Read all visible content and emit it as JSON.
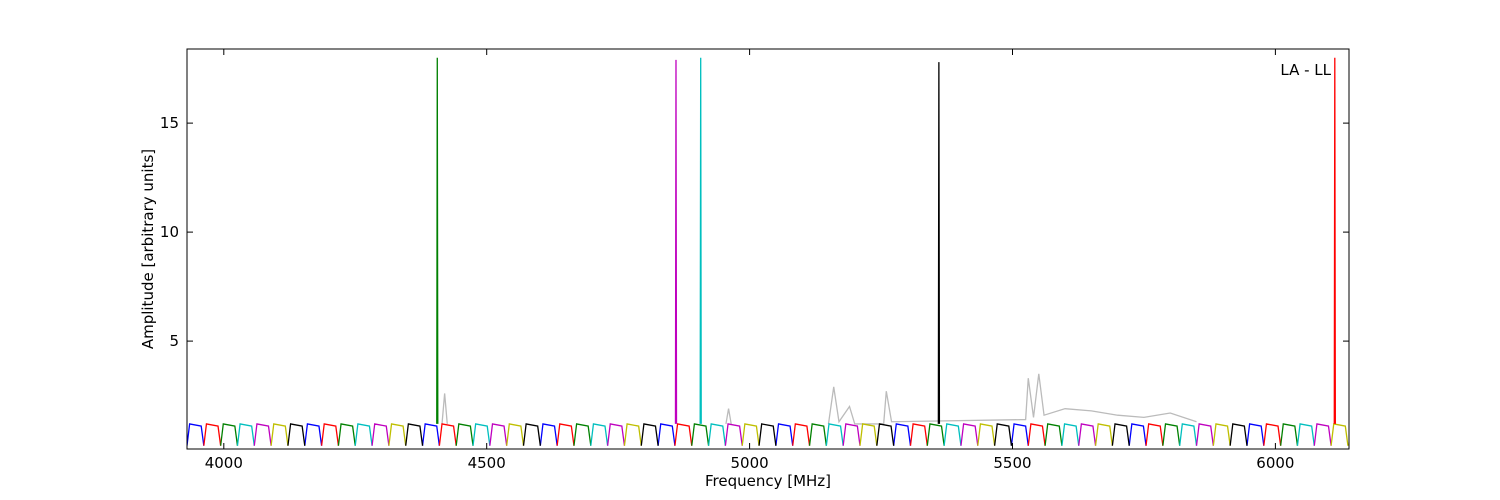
{
  "chart_data": {
    "type": "line",
    "xlabel": "Frequency [MHz]",
    "ylabel": "Amplitude [arbitrary units]",
    "annotation": "LA - LL",
    "xlim": [
      3930,
      6140
    ],
    "ylim": [
      0.05,
      18.4
    ],
    "xticks": [
      4000,
      4500,
      5000,
      5500,
      6000
    ],
    "yticks": [
      5,
      10,
      15
    ],
    "series": [
      {
        "color": "#bbbbbb",
        "x": [
          4415,
          4420,
          4425,
          null,
          4955,
          4960,
          4965,
          null,
          5150,
          5160,
          5170,
          5190,
          5200,
          5255,
          5260,
          5270,
          5525,
          5530,
          5540,
          5550,
          5560,
          5600,
          5650,
          5700,
          5750,
          5800,
          5850
        ],
        "values": [
          1.2,
          2.6,
          1.2,
          null,
          1.2,
          1.9,
          1.2,
          null,
          1.2,
          2.9,
          1.3,
          2.0,
          1.2,
          1.2,
          2.7,
          1.3,
          1.4,
          3.3,
          1.5,
          3.5,
          1.6,
          1.9,
          1.8,
          1.6,
          1.5,
          1.7,
          1.3
        ]
      },
      {
        "color": "#0000ff",
        "x": [
          3930,
          3935,
          3957,
          3962,
          null,
          4154,
          4159,
          4181,
          4186,
          null,
          4378,
          4383,
          4405,
          4410,
          null,
          4602,
          4607,
          4629,
          4634,
          null,
          4826,
          4831,
          4853,
          4858,
          null,
          5050,
          5055,
          5077,
          5082,
          null,
          5274,
          5279,
          5301,
          5306,
          null,
          5498,
          5503,
          5525,
          5530,
          null,
          5722,
          5727,
          5749,
          5754,
          null,
          5946,
          5951,
          5973,
          5978
        ],
        "values": [
          0.2,
          1.2,
          1.1,
          0.2,
          null,
          0.2,
          1.2,
          1.1,
          0.2,
          null,
          0.2,
          1.2,
          1.1,
          0.2,
          null,
          0.2,
          1.2,
          1.1,
          0.2,
          null,
          0.2,
          1.2,
          1.1,
          0.2,
          null,
          0.2,
          1.2,
          1.1,
          0.2,
          null,
          0.2,
          1.2,
          1.1,
          0.2,
          null,
          0.2,
          1.2,
          1.1,
          0.2,
          null,
          0.2,
          1.2,
          1.1,
          0.2,
          null,
          0.2,
          1.2,
          1.1,
          0.2
        ]
      },
      {
        "color": "#ff0000",
        "x": [
          3962,
          3967,
          3989,
          3994,
          null,
          4186,
          4191,
          4213,
          4218,
          null,
          4410,
          4415,
          4437,
          4442,
          null,
          4634,
          4639,
          4661,
          4666,
          null,
          4858,
          4863,
          4885,
          4890,
          null,
          5082,
          5087,
          5109,
          5114,
          null,
          5306,
          5311,
          5333,
          5338,
          null,
          5530,
          5535,
          5557,
          5562,
          null,
          5754,
          5759,
          5781,
          5786,
          null,
          5978,
          5983,
          6005,
          6010
        ],
        "values": [
          0.2,
          1.2,
          1.1,
          0.2,
          null,
          0.2,
          1.2,
          1.1,
          0.2,
          null,
          0.2,
          1.2,
          1.1,
          0.2,
          null,
          0.2,
          1.2,
          1.1,
          0.2,
          null,
          0.2,
          1.2,
          1.1,
          0.2,
          null,
          0.2,
          1.2,
          1.1,
          0.2,
          null,
          0.2,
          1.2,
          1.1,
          0.2,
          null,
          0.2,
          1.2,
          1.1,
          0.2,
          null,
          0.2,
          1.2,
          1.1,
          0.2,
          null,
          0.2,
          1.2,
          1.1,
          0.2
        ]
      },
      {
        "color": "#008000",
        "x": [
          3994,
          3999,
          4021,
          4026,
          null,
          4218,
          4223,
          4245,
          4250,
          null,
          4442,
          4447,
          4469,
          4474,
          null,
          4666,
          4671,
          4693,
          4698,
          null,
          4890,
          4895,
          4917,
          4922,
          null,
          5114,
          5119,
          5141,
          5146,
          null,
          5338,
          5343,
          5365,
          5370,
          null,
          5562,
          5567,
          5589,
          5594,
          null,
          5786,
          5791,
          5813,
          5818,
          null,
          6010,
          6015,
          6037,
          6042
        ],
        "values": [
          0.2,
          1.2,
          1.1,
          0.2,
          null,
          0.2,
          1.2,
          1.1,
          0.2,
          null,
          0.2,
          1.2,
          1.1,
          0.2,
          null,
          0.2,
          1.2,
          1.1,
          0.2,
          null,
          0.2,
          1.2,
          1.1,
          0.2,
          null,
          0.2,
          1.2,
          1.1,
          0.2,
          null,
          0.2,
          1.2,
          1.1,
          0.2,
          null,
          0.2,
          1.2,
          1.1,
          0.2,
          null,
          0.2,
          1.2,
          1.1,
          0.2,
          null,
          0.2,
          1.2,
          1.1,
          0.2
        ]
      },
      {
        "color": "#00bfbf",
        "x": [
          4026,
          4031,
          4053,
          4058,
          null,
          4250,
          4255,
          4277,
          4282,
          null,
          4474,
          4479,
          4501,
          4506,
          null,
          4698,
          4703,
          4725,
          4730,
          null,
          4922,
          4927,
          4949,
          4954,
          null,
          5146,
          5151,
          5173,
          5178,
          null,
          5370,
          5375,
          5397,
          5402,
          null,
          5594,
          5599,
          5621,
          5626,
          null,
          5818,
          5823,
          5845,
          5850,
          null,
          6042,
          6047,
          6069,
          6074
        ],
        "values": [
          0.2,
          1.2,
          1.1,
          0.2,
          null,
          0.2,
          1.2,
          1.1,
          0.2,
          null,
          0.2,
          1.2,
          1.1,
          0.2,
          null,
          0.2,
          1.2,
          1.1,
          0.2,
          null,
          0.2,
          1.2,
          1.1,
          0.2,
          null,
          0.2,
          1.2,
          1.1,
          0.2,
          null,
          0.2,
          1.2,
          1.1,
          0.2,
          null,
          0.2,
          1.2,
          1.1,
          0.2,
          null,
          0.2,
          1.2,
          1.1,
          0.2,
          null,
          0.2,
          1.2,
          1.1,
          0.2
        ]
      },
      {
        "color": "#bf00bf",
        "x": [
          4058,
          4063,
          4085,
          4090,
          null,
          4282,
          4287,
          4309,
          4314,
          null,
          4506,
          4511,
          4533,
          4538,
          null,
          4730,
          4735,
          4757,
          4762,
          null,
          4954,
          4959,
          4981,
          4986,
          null,
          5178,
          5183,
          5205,
          5210,
          null,
          5402,
          5407,
          5429,
          5434,
          null,
          5626,
          5631,
          5653,
          5658,
          null,
          5850,
          5855,
          5877,
          5882,
          null,
          6074,
          6079,
          6101,
          6106
        ],
        "values": [
          0.2,
          1.2,
          1.1,
          0.2,
          null,
          0.2,
          1.2,
          1.1,
          0.2,
          null,
          0.2,
          1.2,
          1.1,
          0.2,
          null,
          0.2,
          1.2,
          1.1,
          0.2,
          null,
          0.2,
          1.2,
          1.1,
          0.2,
          null,
          0.2,
          1.2,
          1.1,
          0.2,
          null,
          0.2,
          1.2,
          1.1,
          0.2,
          null,
          0.2,
          1.2,
          1.1,
          0.2,
          null,
          0.2,
          1.2,
          1.1,
          0.2,
          null,
          0.2,
          1.2,
          1.1,
          0.2
        ]
      },
      {
        "color": "#bfbf00",
        "x": [
          4090,
          4095,
          4117,
          4122,
          null,
          4314,
          4319,
          4341,
          4346,
          null,
          4538,
          4543,
          4565,
          4570,
          null,
          4762,
          4767,
          4789,
          4794,
          null,
          4986,
          4991,
          5013,
          5018,
          null,
          5210,
          5215,
          5237,
          5242,
          null,
          5434,
          5439,
          5461,
          5466,
          null,
          5658,
          5663,
          5685,
          5690,
          null,
          5882,
          5887,
          5909,
          5914,
          null,
          6106,
          6111,
          6133,
          6138
        ],
        "values": [
          0.2,
          1.2,
          1.1,
          0.2,
          null,
          0.2,
          1.2,
          1.1,
          0.2,
          null,
          0.2,
          1.2,
          1.1,
          0.2,
          null,
          0.2,
          1.2,
          1.1,
          0.2,
          null,
          0.2,
          1.2,
          1.1,
          0.2,
          null,
          0.2,
          1.2,
          1.1,
          0.2,
          null,
          0.2,
          1.2,
          1.1,
          0.2,
          null,
          0.2,
          1.2,
          1.1,
          0.2,
          null,
          0.2,
          1.2,
          1.1,
          0.2,
          null,
          0.2,
          1.2,
          1.1,
          0.2
        ]
      },
      {
        "color": "#000000",
        "x": [
          4122,
          4127,
          4149,
          4154,
          null,
          4346,
          4351,
          4373,
          4378,
          null,
          4570,
          4575,
          4597,
          4602,
          null,
          4794,
          4799,
          4821,
          4826,
          null,
          5018,
          5023,
          5045,
          5050,
          null,
          5242,
          5247,
          5269,
          5274,
          null,
          5466,
          5471,
          5493,
          5498,
          null,
          5690,
          5695,
          5717,
          5722,
          null,
          5914,
          5919,
          5941,
          5946
        ],
        "values": [
          0.2,
          1.2,
          1.1,
          0.2,
          null,
          0.2,
          1.2,
          1.1,
          0.2,
          null,
          0.2,
          1.2,
          1.1,
          0.2,
          null,
          0.2,
          1.2,
          1.1,
          0.2,
          null,
          0.2,
          1.2,
          1.1,
          0.2,
          null,
          0.2,
          1.2,
          1.1,
          0.2,
          null,
          0.2,
          1.2,
          1.1,
          0.2,
          null,
          0.2,
          1.2,
          1.1,
          0.2,
          null,
          0.2,
          1.2,
          1.1,
          0.2
        ]
      },
      {
        "color": "#008000",
        "x": [
          4405,
          4406,
          4407
        ],
        "values": [
          1.2,
          18.0,
          1.2
        ]
      },
      {
        "color": "#bf00bf",
        "x": [
          4859,
          4860,
          4861
        ],
        "values": [
          1.2,
          17.9,
          1.2
        ]
      },
      {
        "color": "#00bfbf",
        "x": [
          4906,
          4907,
          4908
        ],
        "values": [
          1.2,
          18.0,
          1.2
        ]
      },
      {
        "color": "#000000",
        "x": [
          5359,
          5360,
          5361
        ],
        "values": [
          1.2,
          17.8,
          1.2
        ]
      },
      {
        "color": "#ff0000",
        "x": [
          6112,
          6113,
          6114
        ],
        "values": [
          1.2,
          18.0,
          1.2
        ]
      }
    ]
  }
}
